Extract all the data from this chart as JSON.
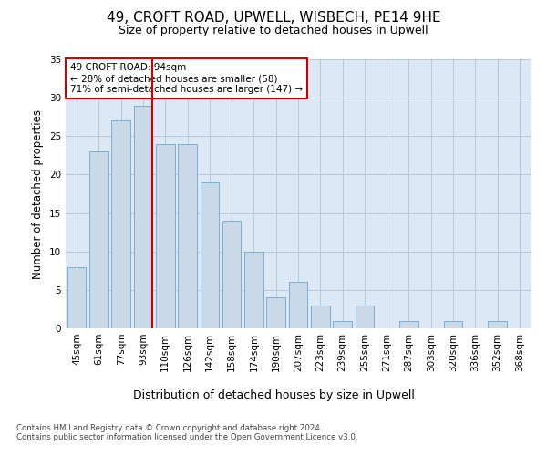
{
  "title": "49, CROFT ROAD, UPWELL, WISBECH, PE14 9HE",
  "subtitle": "Size of property relative to detached houses in Upwell",
  "xlabel": "Distribution of detached houses by size in Upwell",
  "ylabel": "Number of detached properties",
  "bar_labels": [
    "45sqm",
    "61sqm",
    "77sqm",
    "93sqm",
    "110sqm",
    "126sqm",
    "142sqm",
    "158sqm",
    "174sqm",
    "190sqm",
    "207sqm",
    "223sqm",
    "239sqm",
    "255sqm",
    "271sqm",
    "287sqm",
    "303sqm",
    "320sqm",
    "336sqm",
    "352sqm",
    "368sqm"
  ],
  "bar_values": [
    8,
    23,
    27,
    29,
    24,
    24,
    19,
    14,
    10,
    4,
    6,
    3,
    1,
    3,
    0,
    1,
    0,
    1,
    0,
    1,
    0
  ],
  "bar_color": "#c9d9e8",
  "bar_edgecolor": "#7bafd4",
  "grid_color": "#b8c8d8",
  "bg_color": "#dce8f4",
  "vline_color": "#cc0000",
  "vline_bar_index": 3,
  "annotation_text": "49 CROFT ROAD: 94sqm\n← 28% of detached houses are smaller (58)\n71% of semi-detached houses are larger (147) →",
  "annotation_box_edgecolor": "#cc0000",
  "ylim": [
    0,
    35
  ],
  "yticks": [
    0,
    5,
    10,
    15,
    20,
    25,
    30,
    35
  ],
  "footnote": "Contains HM Land Registry data © Crown copyright and database right 2024.\nContains public sector information licensed under the Open Government Licence v3.0.",
  "title_fontsize": 11,
  "subtitle_fontsize": 9,
  "ylabel_fontsize": 8.5,
  "xlabel_fontsize": 9,
  "tick_fontsize": 7.5,
  "annot_fontsize": 7.5,
  "footnote_fontsize": 6.2
}
